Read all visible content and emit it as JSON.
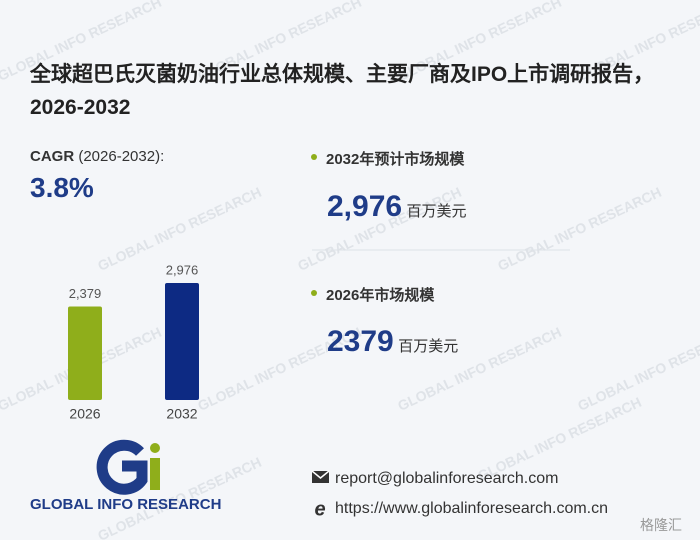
{
  "title": "全球超巴氏灭菌奶油行业总体规模、主要厂商及IPO上市调研报告，2026-2032",
  "cagr": {
    "label": "CAGR",
    "period": "(2026-2032):",
    "value": "3.8%"
  },
  "stats": [
    {
      "label": "2032年预计市场规模",
      "value": "2,976",
      "unit": "百万美元"
    },
    {
      "label": "2026年市场规模",
      "value": "2379",
      "unit": "百万美元"
    }
  ],
  "chart_data": {
    "type": "bar",
    "categories": [
      "2026",
      "2032"
    ],
    "values": [
      2379,
      2976
    ],
    "value_labels": [
      "2,379",
      "2,976"
    ],
    "colors": [
      "#8fae1b",
      "#0d2a83"
    ]
  },
  "logo": "GLOBAL INFO RESEARCH",
  "contact": {
    "email": "report@globalinforesearch.com",
    "url": "https://www.globalinforesearch.com.cn"
  },
  "watermark": "GLOBAL INFO RESEARCH",
  "corner_mark": "格隆汇"
}
